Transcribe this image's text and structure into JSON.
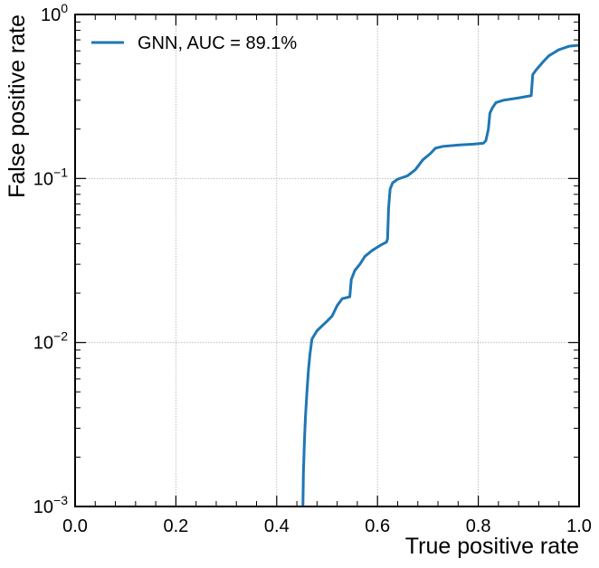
{
  "chart_data": {
    "type": "line",
    "title": "",
    "xlabel": "True positive rate",
    "ylabel": "False positive rate",
    "xlim": [
      0.0,
      1.0
    ],
    "ylim": [
      0.001,
      1.0
    ],
    "yscale": "log",
    "grid": true,
    "legend": "upper-left",
    "x_tick_labels": [
      "0.0",
      "0.2",
      "0.4",
      "0.6",
      "0.8",
      "1.0"
    ],
    "y_tick_labels": [
      {
        "base": "10",
        "exp": "−3"
      },
      {
        "base": "10",
        "exp": "−2"
      },
      {
        "base": "10",
        "exp": "−1"
      },
      {
        "base": "10",
        "exp": "0"
      }
    ],
    "series": [
      {
        "name": "GNN, AUC = 89.1%",
        "color": "#1f77b4",
        "x": [
          0.452,
          0.453,
          0.455,
          0.457,
          0.46,
          0.463,
          0.466,
          0.47,
          0.48,
          0.5,
          0.51,
          0.52,
          0.53,
          0.545,
          0.548,
          0.555,
          0.565,
          0.575,
          0.59,
          0.605,
          0.618,
          0.62,
          0.622,
          0.625,
          0.63,
          0.64,
          0.66,
          0.675,
          0.69,
          0.705,
          0.715,
          0.73,
          0.76,
          0.79,
          0.81,
          0.815,
          0.82,
          0.823,
          0.828,
          0.835,
          0.85,
          0.88,
          0.905,
          0.908,
          0.915,
          0.93,
          0.94,
          0.96,
          0.98,
          1.0
        ],
        "y": [
          0.001,
          0.0016,
          0.0025,
          0.0035,
          0.005,
          0.0068,
          0.0085,
          0.0105,
          0.0118,
          0.0135,
          0.0145,
          0.0168,
          0.0185,
          0.019,
          0.0242,
          0.0275,
          0.03,
          0.0335,
          0.0365,
          0.039,
          0.041,
          0.043,
          0.066,
          0.086,
          0.094,
          0.099,
          0.104,
          0.113,
          0.13,
          0.142,
          0.153,
          0.157,
          0.16,
          0.162,
          0.164,
          0.17,
          0.2,
          0.25,
          0.27,
          0.29,
          0.3,
          0.31,
          0.32,
          0.43,
          0.46,
          0.52,
          0.56,
          0.61,
          0.64,
          0.65
        ]
      }
    ]
  }
}
